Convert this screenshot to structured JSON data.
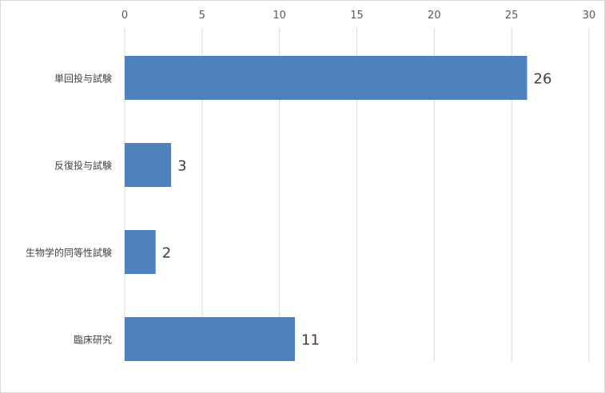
{
  "chart_data": {
    "type": "bar",
    "orientation": "horizontal",
    "categories": [
      "単回投与試験",
      "反復投与試験",
      "生物学的同等性試験",
      "臨床研究"
    ],
    "values": [
      26,
      3,
      2,
      11
    ],
    "data_labels": [
      "26",
      "3",
      "2",
      "11"
    ],
    "xlim": [
      0,
      30
    ],
    "x_ticks": [
      0,
      5,
      10,
      15,
      20,
      25,
      30
    ],
    "x_tick_labels": [
      "0",
      "5",
      "10",
      "15",
      "20",
      "25",
      "30"
    ],
    "title": "",
    "xlabel": "",
    "ylabel": "",
    "grid": "vertical",
    "legend": "none",
    "axis_position": "top",
    "colors": {
      "bar": "#4f81bd",
      "grid": "#d9d9d9",
      "text": "#404040"
    }
  }
}
